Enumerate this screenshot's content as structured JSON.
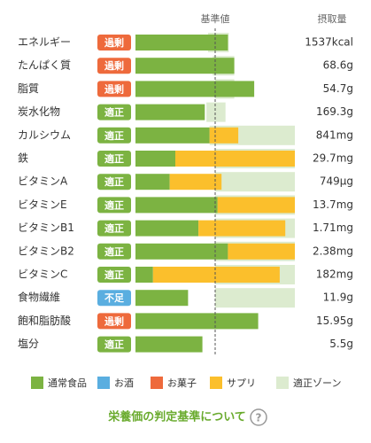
{
  "chart_data": {
    "type": "bar",
    "orientation": "horizontal",
    "stacked": true,
    "reference_label": "基準値",
    "reference": 100,
    "amount_header": "摂取量",
    "xlim": [
      0,
      200
    ],
    "categories": [
      "エネルギー",
      "たんぱく質",
      "脂質",
      "炭水化物",
      "カルシウム",
      "鉄",
      "ビタミンA",
      "ビタミンE",
      "ビタミンB1",
      "ビタミンB2",
      "ビタミンC",
      "食物繊維",
      "飽和脂肪酸",
      "塩分"
    ],
    "status": [
      "過剰",
      "過剰",
      "過剰",
      "適正",
      "適正",
      "適正",
      "適正",
      "適正",
      "適正",
      "適正",
      "適正",
      "不足",
      "過剰",
      "適正"
    ],
    "status_colors": [
      "#ee6a3c",
      "#ee6a3c",
      "#ee6a3c",
      "#7cb342",
      "#7cb342",
      "#7cb342",
      "#7cb342",
      "#7cb342",
      "#7cb342",
      "#7cb342",
      "#7cb342",
      "#5aaee0",
      "#ee6a3c",
      "#7cb342"
    ],
    "amounts": [
      "1537kcal",
      "68.6g",
      "54.7g",
      "169.3g",
      "841mg",
      "29.7mg",
      "749μg",
      "13.7mg",
      "1.71mg",
      "2.38mg",
      "182mg",
      "11.9g",
      "15.95g",
      "5.5g"
    ],
    "series": [
      {
        "name": "通常食品",
        "color": "#7cb342",
        "values": [
          116,
          124,
          149,
          87,
          93,
          50,
          43,
          103,
          79,
          116,
          22,
          66,
          154,
          84
        ]
      },
      {
        "name": "お酒",
        "color": "#5aaee0",
        "values": [
          null,
          null,
          null,
          null,
          null,
          null,
          null,
          null,
          null,
          null,
          null,
          null,
          null,
          null
        ]
      },
      {
        "name": "お菓子",
        "color": "#ee6a3c",
        "values": [
          null,
          null,
          null,
          null,
          null,
          null,
          null,
          null,
          null,
          null,
          null,
          null,
          null,
          null
        ]
      },
      {
        "name": "サプリ",
        "color": "#fbbf2c",
        "values": [
          null,
          null,
          null,
          null,
          36,
          150,
          65,
          97,
          109,
          84,
          159,
          null,
          null,
          null
        ]
      }
    ],
    "zone": {
      "name": "適正ゾーン",
      "color": "#dcebcf",
      "start": [
        91,
        97,
        100,
        89,
        93,
        100,
        100,
        100,
        100,
        100,
        100,
        100,
        null,
        null
      ],
      "end": [
        117,
        124,
        124,
        113,
        200,
        200,
        200,
        200,
        200,
        200,
        200,
        200,
        null,
        null
      ]
    },
    "link_text": "栄養価の判定基準について",
    "help_icon": "?"
  }
}
